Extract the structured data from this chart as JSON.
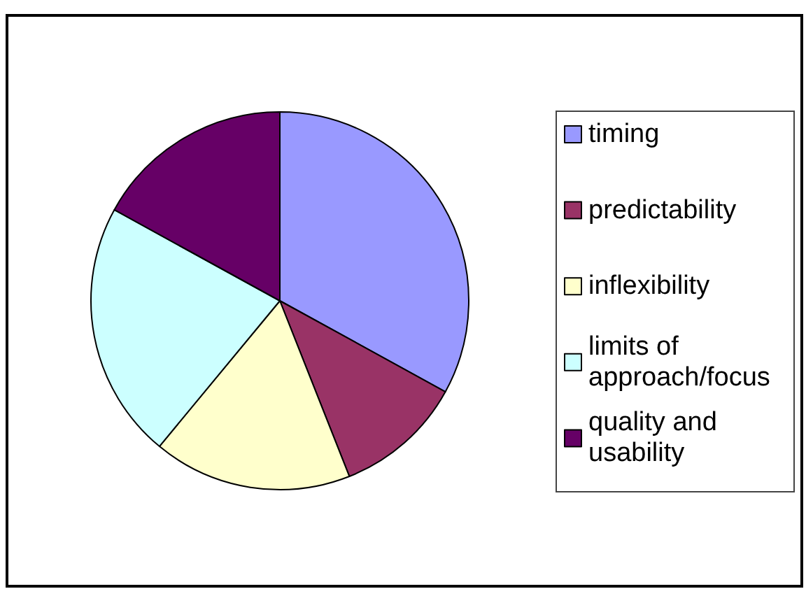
{
  "chart_data": {
    "type": "pie",
    "categories": [
      "timing",
      "predictability",
      "inflexibility",
      "limits of approach/focus",
      "quality and usability"
    ],
    "values": [
      33,
      11,
      17,
      22,
      17
    ],
    "colors": [
      "#9999ff",
      "#993366",
      "#ffffcc",
      "#ccffff",
      "#660066"
    ],
    "legend": "right"
  }
}
